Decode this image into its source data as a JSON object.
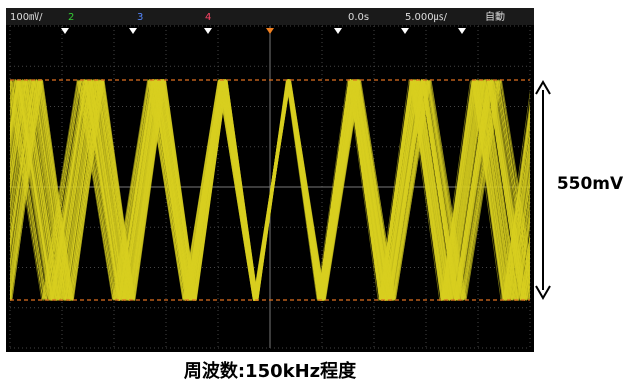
{
  "status_bar": {
    "ch1_scale": "100㎷/",
    "ch2": "2",
    "ch3": "3",
    "ch4": "4",
    "time_offset": "0.0s",
    "time_scale": "5.000㎲/",
    "acquire_mode": "自動"
  },
  "annotation": "550mV",
  "caption": "周波数:150kHz程度"
}
